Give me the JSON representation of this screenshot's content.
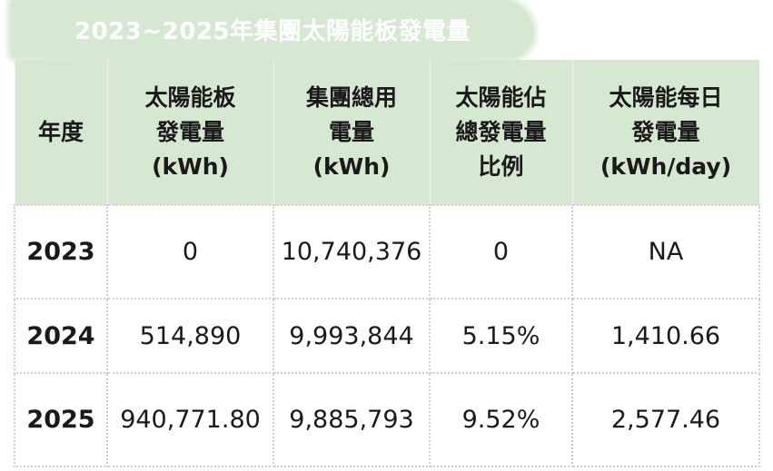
{
  "title": "2023~2025年集團太陽能板發電量",
  "colors": {
    "header_bg": "#d6e8d2",
    "title_text": "#ffffff",
    "grid": "#d0d0d0"
  },
  "table": {
    "headers": [
      [
        "年度"
      ],
      [
        "太陽能板",
        "發電量",
        "(kWh)"
      ],
      [
        "集團總用",
        "電量",
        "(kWh)"
      ],
      [
        "太陽能佔",
        "總發電量",
        "比例"
      ],
      [
        "太陽能每日",
        "發電量",
        "(kWh/day)"
      ]
    ],
    "rows": [
      [
        "2023",
        "0",
        "10,740,376",
        "0",
        "NA"
      ],
      [
        "2024",
        "514,890",
        "9,993,844",
        "5.15%",
        "1,410.66"
      ],
      [
        "2025",
        "940,771.80",
        "9,885,793",
        "9.52%",
        "2,577.46"
      ]
    ]
  }
}
